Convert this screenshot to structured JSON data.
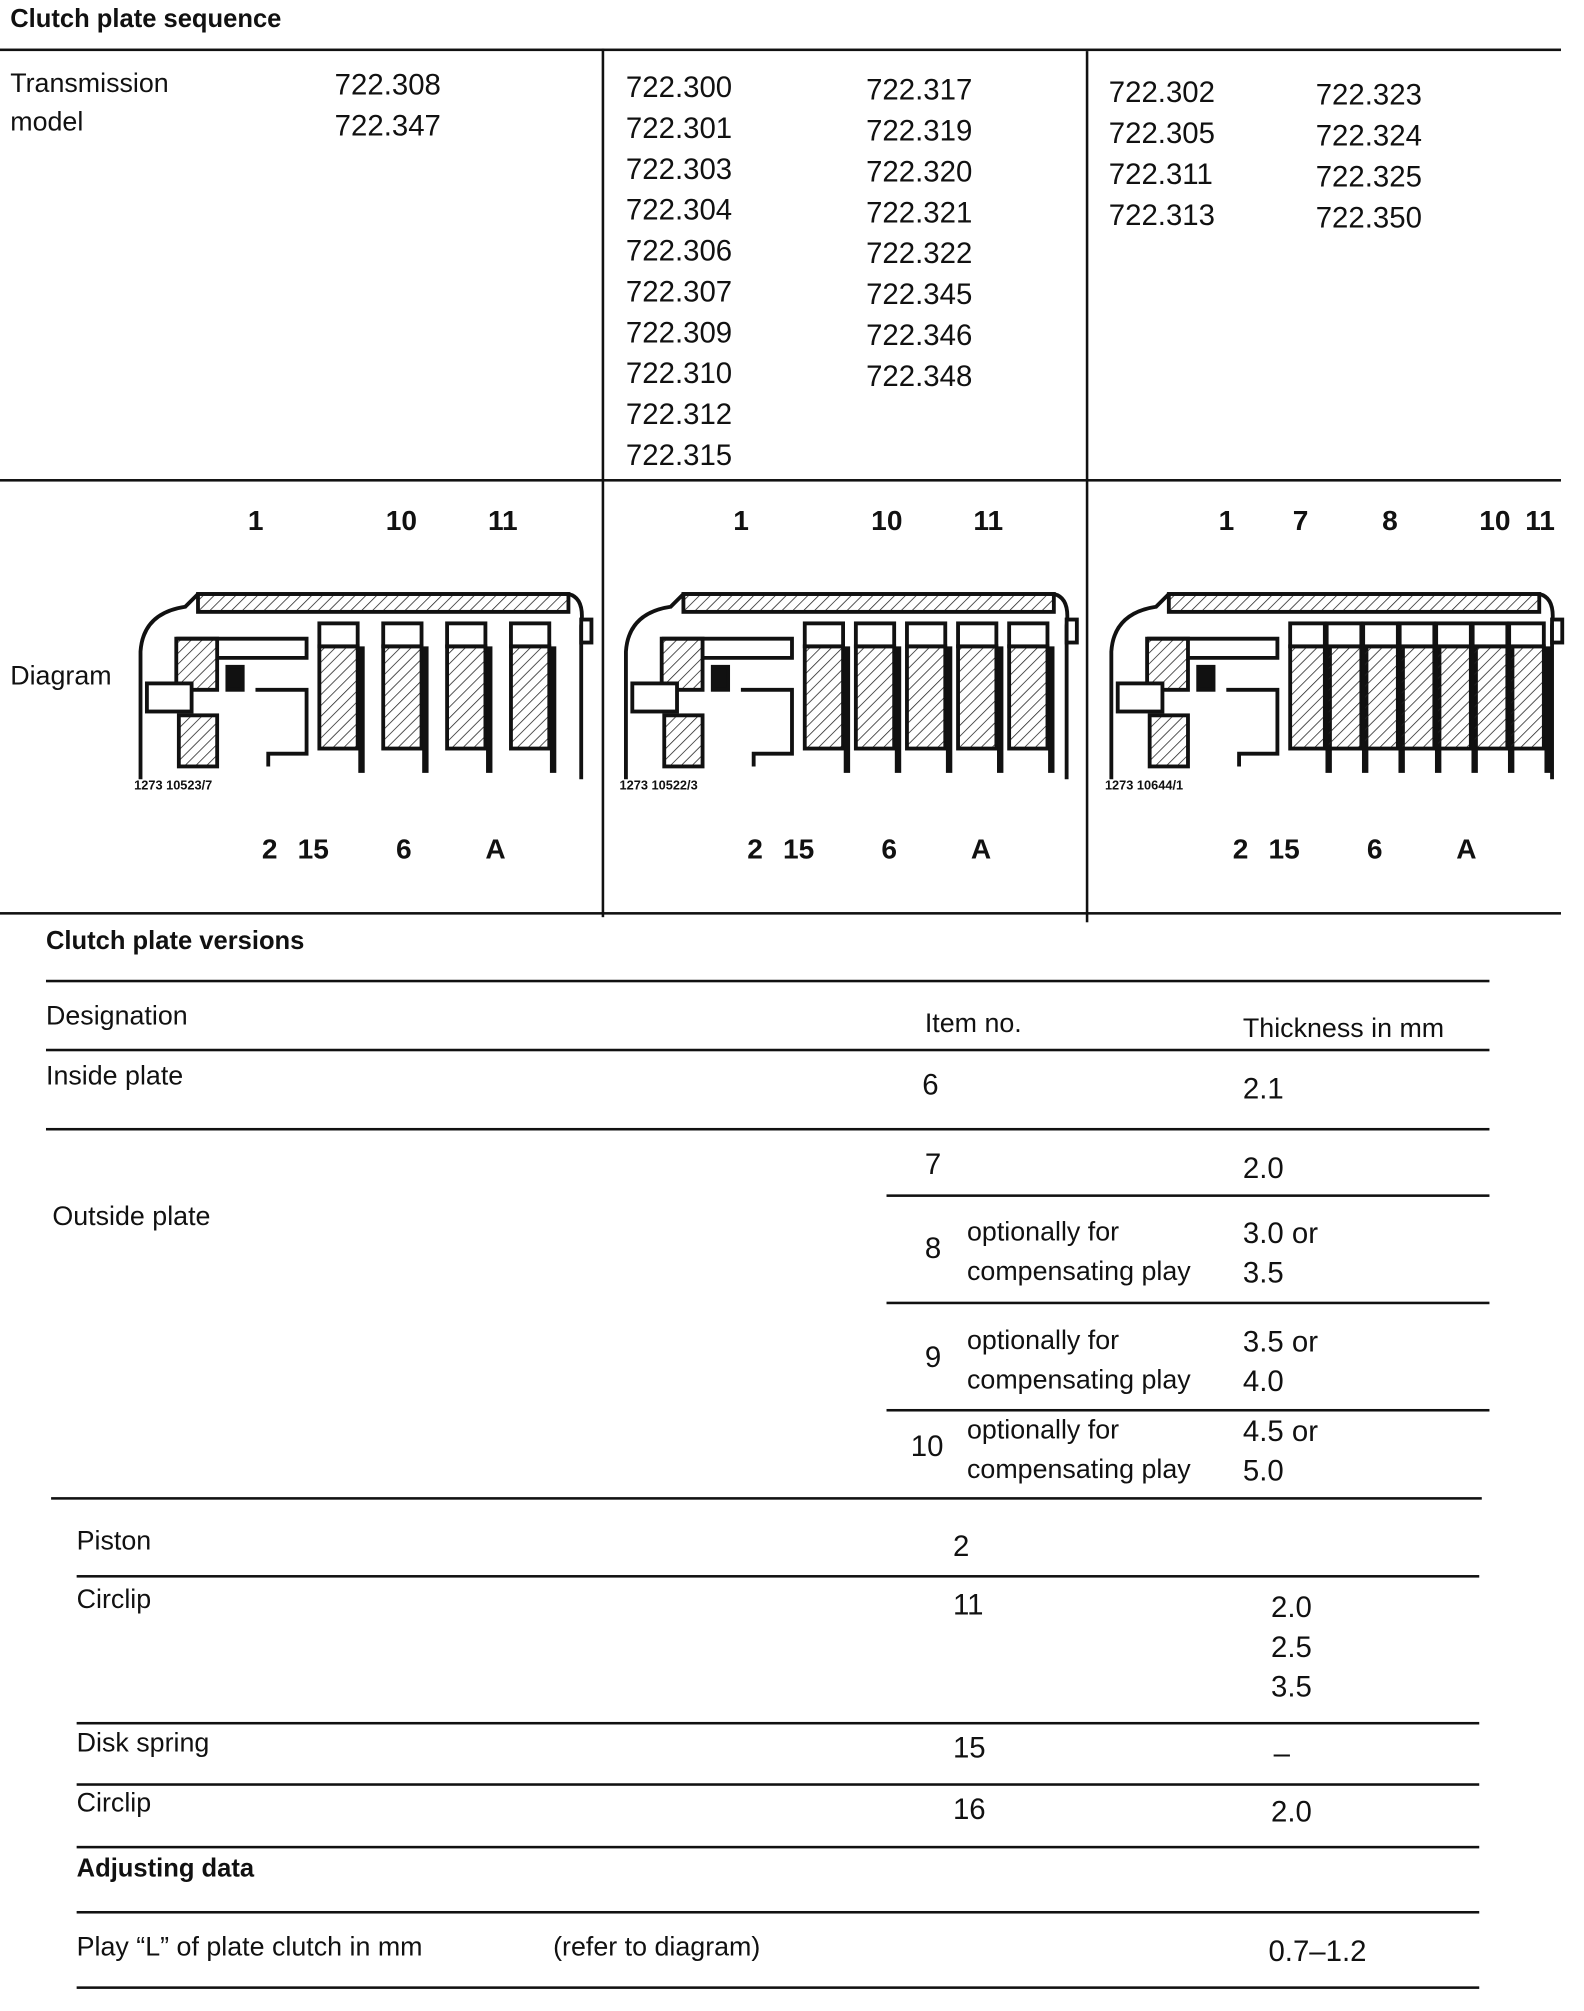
{
  "sequence": {
    "title": "Clutch plate sequence",
    "row_label_1": "Transmission",
    "row_label_2": "model",
    "col1": [
      "722.308",
      "722.347"
    ],
    "col2a": [
      "722.300",
      "722.301",
      "722.303",
      "722.304",
      "722.306",
      "722.307",
      "722.309",
      "722.310",
      "722.312",
      "722.315"
    ],
    "col2b": [
      "722.317",
      "722.319",
      "722.320",
      "722.321",
      "722.322",
      "722.345",
      "722.346",
      "722.348"
    ],
    "col3a": [
      "722.302",
      "722.305",
      "722.311",
      "722.313"
    ],
    "col3b": [
      "722.323",
      "722.324",
      "722.325",
      "722.350"
    ],
    "diagram_label": "Diagram",
    "diagrams": [
      {
        "caption": "1273 10523/7",
        "top": [
          "1",
          "10",
          "11"
        ],
        "bottom": [
          "2",
          "15",
          "6",
          "A"
        ],
        "plates": 4
      },
      {
        "caption": "1273 10522/3",
        "top": [
          "1",
          "10",
          "11"
        ],
        "bottom": [
          "2",
          "15",
          "6",
          "A"
        ],
        "plates": 5
      },
      {
        "caption": "1273 10644/1",
        "top": [
          "1",
          "7",
          "8",
          "10",
          "11"
        ],
        "bottom": [
          "2",
          "15",
          "6",
          "A"
        ],
        "plates": 7
      }
    ]
  },
  "versions": {
    "title": "Clutch plate versions",
    "headers": {
      "designation": "Designation",
      "item": "Item no.",
      "thickness": "Thickness in mm"
    },
    "inside": {
      "label": "Inside plate",
      "item": "6",
      "thickness": "2.1"
    },
    "outside_label": "Outside plate",
    "outside": [
      {
        "item": "7",
        "note1": "",
        "note2": "",
        "t1": "2.0",
        "t2": ""
      },
      {
        "item": "8",
        "note1": "optionally for",
        "note2": "compensating play",
        "t1": "3.0 or",
        "t2": "3.5"
      },
      {
        "item": "9",
        "note1": "optionally for",
        "note2": "compensating play",
        "t1": "3.5 or",
        "t2": "4.0"
      },
      {
        "item": "10",
        "note1": "optionally for",
        "note2": "compensating play",
        "t1": "4.5 or",
        "t2": "5.0"
      }
    ],
    "piston": {
      "label": "Piston",
      "item": "2"
    },
    "circlip1": {
      "label": "Circlip",
      "item": "11",
      "thickness": [
        "2.0",
        "2.5",
        "3.5"
      ]
    },
    "disk_spring": {
      "label": "Disk spring",
      "item": "15",
      "thickness": "–"
    },
    "circlip2": {
      "label": "Circlip",
      "item": "16",
      "thickness": "2.0"
    }
  },
  "adjusting": {
    "title": "Adjusting data",
    "play_label": "Play “L” of plate clutch in mm",
    "play_ref": "(refer to diagram)",
    "play_value": "0.7–1.2"
  }
}
